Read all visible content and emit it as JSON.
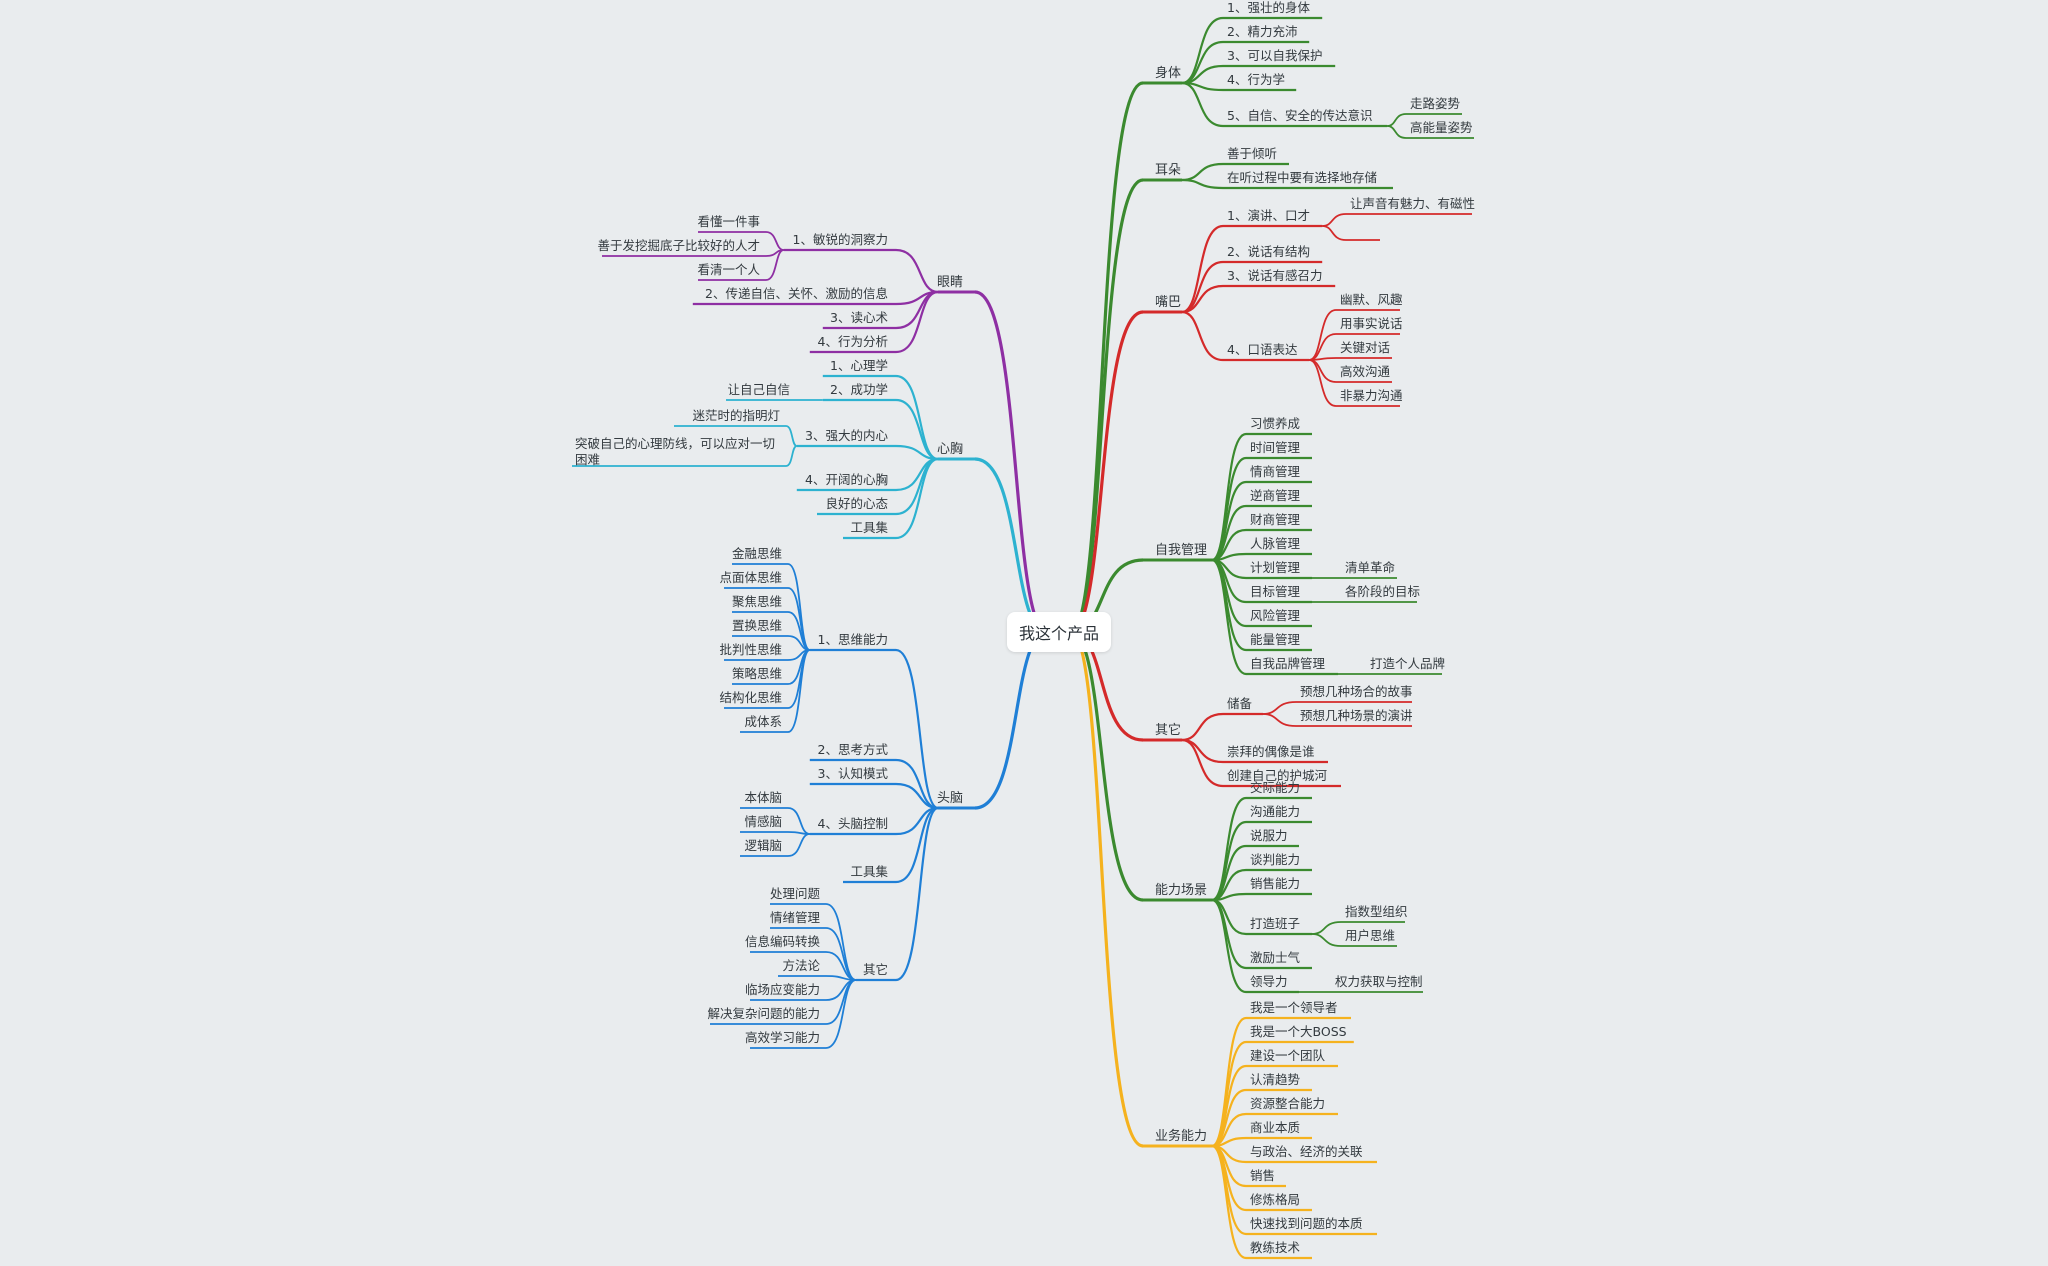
{
  "center": "我这个产品",
  "colors": {
    "green": "#3b8a2f",
    "red": "#d42a2a",
    "yellow": "#f5b21e",
    "purple": "#8e2fa3",
    "cyan": "#2db2d0",
    "blue": "#1f7fd6"
  },
  "branches": [
    {
      "id": "shenti",
      "label": "身体",
      "color": "green",
      "children": [
        {
          "label": "1、强壮的身体"
        },
        {
          "label": "2、精力充沛"
        },
        {
          "label": "3、可以自我保护"
        },
        {
          "label": "4、行为学"
        },
        {
          "label": "5、自信、安全的传达意识",
          "children": [
            {
              "label": "走路姿势"
            },
            {
              "label": "高能量姿势"
            }
          ]
        }
      ]
    },
    {
      "id": "erduo",
      "label": "耳朵",
      "color": "green",
      "children": [
        {
          "label": "善于倾听"
        },
        {
          "label": "在听过程中要有选择地存储"
        }
      ]
    },
    {
      "id": "zuiba",
      "label": "嘴巴",
      "color": "red",
      "children": [
        {
          "label": "1、演讲、口才",
          "children": [
            {
              "label": "让声音有魅力、有磁性"
            },
            {
              "label": ""
            }
          ]
        },
        {
          "label": "2、说话有结构"
        },
        {
          "label": "3、说话有感召力"
        },
        {
          "label": "4、口语表达",
          "children": [
            {
              "label": "幽默、风趣"
            },
            {
              "label": "用事实说话"
            },
            {
              "label": "关键对话"
            },
            {
              "label": "高效沟通"
            },
            {
              "label": "非暴力沟通"
            }
          ]
        }
      ]
    },
    {
      "id": "ziwoguanli",
      "label": "自我管理",
      "color": "green",
      "children": [
        {
          "label": "习惯养成"
        },
        {
          "label": "时间管理"
        },
        {
          "label": "情商管理"
        },
        {
          "label": "逆商管理"
        },
        {
          "label": "财商管理"
        },
        {
          "label": "人脉管理"
        },
        {
          "label": "计划管理",
          "children": [
            {
              "label": "清单革命"
            }
          ]
        },
        {
          "label": "目标管理",
          "children": [
            {
              "label": "各阶段的目标"
            }
          ]
        },
        {
          "label": "风险管理"
        },
        {
          "label": "能量管理"
        },
        {
          "label": "自我品牌管理",
          "children": [
            {
              "label": "打造个人品牌"
            }
          ]
        }
      ]
    },
    {
      "id": "qita-right",
      "label": "其它",
      "color": "red",
      "children": [
        {
          "label": "储备",
          "children": [
            {
              "label": "预想几种场合的故事"
            },
            {
              "label": "预想几种场景的演讲"
            }
          ]
        },
        {
          "label": "崇拜的偶像是谁"
        },
        {
          "label": "创建自己的护城河"
        }
      ]
    },
    {
      "id": "nengli",
      "label": "能力场景",
      "color": "green",
      "children": [
        {
          "label": "交际能力"
        },
        {
          "label": "沟通能力"
        },
        {
          "label": "说服力"
        },
        {
          "label": "谈判能力"
        },
        {
          "label": "销售能力"
        },
        {
          "label": "打造班子",
          "children": [
            {
              "label": "指数型组织"
            },
            {
              "label": "用户思维"
            }
          ]
        },
        {
          "label": "激励士气"
        },
        {
          "label": "领导力",
          "children": [
            {
              "label": "权力获取与控制"
            }
          ]
        }
      ]
    },
    {
      "id": "yewu",
      "label": "业务能力",
      "color": "yellow",
      "children": [
        {
          "label": "我是一个领导者"
        },
        {
          "label": "我是一个大BOSS"
        },
        {
          "label": "建设一个团队"
        },
        {
          "label": "认清趋势"
        },
        {
          "label": "资源整合能力"
        },
        {
          "label": "商业本质"
        },
        {
          "label": "与政治、经济的关联"
        },
        {
          "label": "销售"
        },
        {
          "label": "修炼格局"
        },
        {
          "label": "快速找到问题的本质"
        },
        {
          "label": "教练技术"
        }
      ]
    },
    {
      "id": "yanjing",
      "label": "眼睛",
      "color": "purple",
      "children": [
        {
          "label": "1、敏锐的洞察力",
          "children": [
            {
              "label": "看懂一件事"
            },
            {
              "label": "善于发挖掘底子比较好的人才"
            },
            {
              "label": "看清一个人"
            }
          ]
        },
        {
          "label": "2、传递自信、关怀、激励的信息"
        },
        {
          "label": "3、读心术"
        },
        {
          "label": "4、行为分析"
        }
      ]
    },
    {
      "id": "xinxiong",
      "label": "心胸",
      "color": "cyan",
      "children": [
        {
          "label": "1、心理学"
        },
        {
          "label": "2、成功学",
          "children": [
            {
              "label": "让自己自信"
            }
          ]
        },
        {
          "label": "3、强大的内心",
          "children": [
            {
              "label": "迷茫时的指明灯"
            },
            {
              "label": "突破自己的心理防线，可以应对一切",
              "label2": "困难"
            }
          ]
        },
        {
          "label": "4、开阔的心胸"
        },
        {
          "label": "良好的心态"
        },
        {
          "label": "工具集"
        }
      ]
    },
    {
      "id": "tounao",
      "label": "头脑",
      "color": "blue",
      "children": [
        {
          "label": "1、思维能力",
          "children": [
            {
              "label": "金融思维"
            },
            {
              "label": "点面体思维"
            },
            {
              "label": "聚焦思维"
            },
            {
              "label": "置换思维"
            },
            {
              "label": "批判性思维"
            },
            {
              "label": "策略思维"
            },
            {
              "label": "结构化思维"
            },
            {
              "label": "成体系"
            }
          ]
        },
        {
          "label": "2、思考方式"
        },
        {
          "label": "3、认知模式"
        },
        {
          "label": "4、头脑控制",
          "children": [
            {
              "label": "本体脑"
            },
            {
              "label": "情感脑"
            },
            {
              "label": "逻辑脑"
            }
          ]
        },
        {
          "label": "工具集"
        },
        {
          "label": "其它",
          "children": [
            {
              "label": "处理问题"
            },
            {
              "label": "情绪管理"
            },
            {
              "label": "信息编码转换"
            },
            {
              "label": "方法论"
            },
            {
              "label": "临场应变能力"
            },
            {
              "label": "解决复杂问题的能力"
            },
            {
              "label": "高效学习能力"
            }
          ]
        }
      ]
    }
  ]
}
